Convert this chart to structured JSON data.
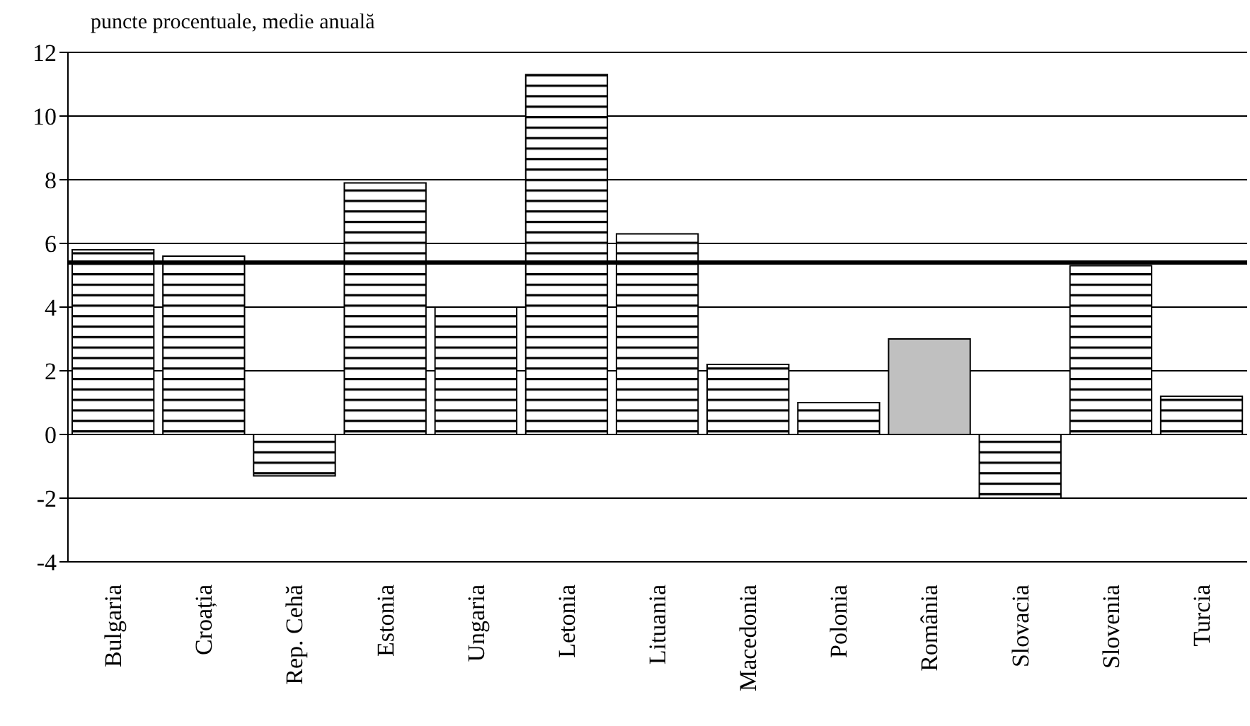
{
  "chart_data": {
    "type": "bar",
    "ylabel": "puncte procentuale, medie anuală",
    "categories": [
      "Bulgaria",
      "Croația",
      "Rep. Cehă",
      "Estonia",
      "Ungaria",
      "Letonia",
      "Lituania",
      "Macedonia",
      "Polonia",
      "România",
      "Slovacia",
      "Slovenia",
      "Turcia"
    ],
    "values": [
      5.8,
      5.6,
      -1.3,
      7.9,
      4.0,
      11.3,
      6.3,
      2.2,
      1.0,
      3.0,
      -2.0,
      5.3,
      1.2
    ],
    "colors": [
      "#000000",
      "#000000",
      "#000000",
      "#000000",
      "#000000",
      "#000000",
      "#000000",
      "#000000",
      "#000000",
      "#c0c0c0",
      "#000000",
      "#000000",
      "#000000"
    ],
    "ylim": [
      -4,
      12
    ],
    "yticks": [
      -4,
      -2,
      0,
      2,
      4,
      6,
      8,
      10,
      12
    ],
    "grid": "y",
    "ref_lines": [
      {
        "axis": "y",
        "value": 5.4,
        "color": "#000000"
      }
    ]
  }
}
